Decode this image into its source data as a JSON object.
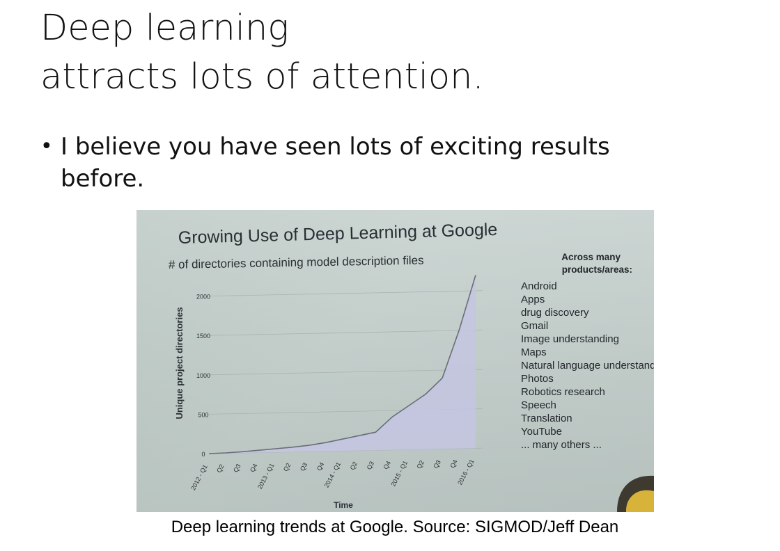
{
  "slide": {
    "title_line1": "Deep learning",
    "title_line2": "attracts lots of attention.",
    "bullet": "I believe you have seen lots of exciting results before.",
    "caption": "Deep learning trends at Google. Source: SIGMOD/Jeff Dean"
  },
  "chart_data": {
    "type": "area",
    "title": "Growing Use of Deep Learning at Google",
    "subtitle": "# of directories containing model description files",
    "xlabel": "Time",
    "ylabel": "Unique project directories",
    "categories": [
      "2012 - Q1",
      "Q2",
      "Q3",
      "Q4",
      "2013 - Q1",
      "Q2",
      "Q3",
      "Q4",
      "2014 - Q1",
      "Q2",
      "Q3",
      "Q4",
      "2015 - Q1",
      "Q2",
      "Q3",
      "Q4",
      "2016 - Q1"
    ],
    "values": [
      0,
      5,
      15,
      30,
      45,
      60,
      80,
      110,
      150,
      190,
      230,
      420,
      560,
      700,
      900,
      1500,
      2200
    ],
    "yticks": [
      0,
      500,
      1000,
      1500,
      2000
    ],
    "ylim": [
      0,
      2200
    ],
    "grid": true,
    "side_heading": "Across many products/areas:",
    "side_items": [
      "Android",
      "Apps",
      "drug discovery",
      "Gmail",
      "Image understanding",
      "Maps",
      "Natural language understanding",
      "Photos",
      "Robotics research",
      "Speech",
      "Translation",
      "YouTube",
      "... many others ..."
    ],
    "colors": {
      "area": "#c4c6e2",
      "line": "#6a6d78",
      "background": "#c5cfcc"
    }
  }
}
